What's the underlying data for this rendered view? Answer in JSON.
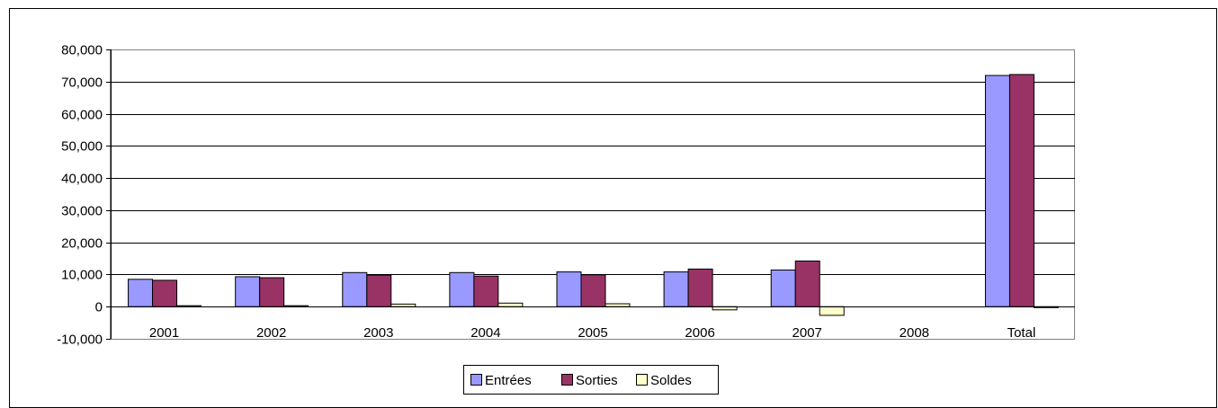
{
  "chart_data": {
    "type": "bar",
    "categories": [
      "2001",
      "2002",
      "2003",
      "2004",
      "2005",
      "2006",
      "2007",
      "2008",
      "Total"
    ],
    "series": [
      {
        "name": "Entrées",
        "color": "#9999ff",
        "values": [
          8500,
          9300,
          10600,
          10600,
          10800,
          10800,
          11400,
          0,
          71900
        ]
      },
      {
        "name": "Sorties",
        "color": "#993366",
        "values": [
          8200,
          9000,
          9800,
          9500,
          9900,
          11700,
          14200,
          0,
          72200
        ]
      },
      {
        "name": "Soldes",
        "color": "#ffffcc",
        "values": [
          300,
          300,
          800,
          1100,
          900,
          -1000,
          -2700,
          0,
          -300
        ]
      }
    ],
    "ylim": [
      -10000,
      80000
    ],
    "ytick_step": 10000,
    "ytick_labels": [
      "-10,000",
      "0",
      "10,000",
      "20,000",
      "30,000",
      "40,000",
      "50,000",
      "60,000",
      "70,000",
      "80,000"
    ],
    "grid": true,
    "legend_position": "bottom-center",
    "title": "",
    "xlabel": "",
    "ylabel": ""
  }
}
